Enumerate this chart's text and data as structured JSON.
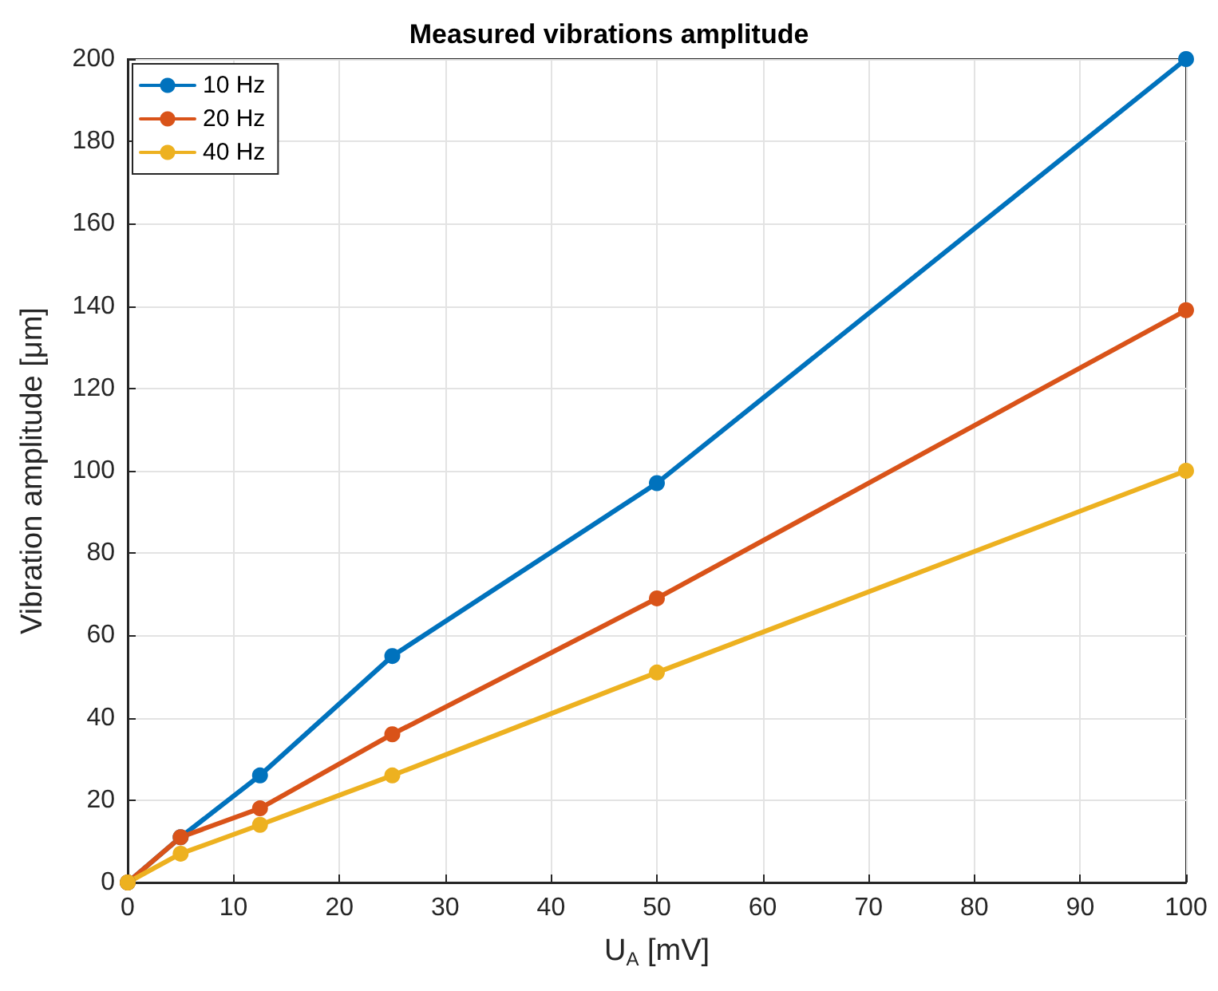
{
  "chart_data": {
    "type": "line",
    "title": "Measured vibrations amplitude",
    "xlabel": "U$_{A}$ [mV]",
    "ylabel": "Vibration amplitude [μm]",
    "x": [
      0,
      5,
      12.5,
      25,
      50,
      100
    ],
    "series": [
      {
        "name": "10 Hz",
        "color": "#0072bd",
        "values": [
          0,
          11,
          26,
          55,
          97,
          200
        ]
      },
      {
        "name": "20 Hz",
        "color": "#d95319",
        "values": [
          0,
          11,
          18,
          36,
          69,
          139
        ]
      },
      {
        "name": "40 Hz",
        "color": "#edb120",
        "values": [
          0,
          7,
          14,
          26,
          51,
          100
        ]
      }
    ],
    "xlim": [
      0,
      100
    ],
    "xticks": [
      0,
      10,
      20,
      30,
      40,
      50,
      60,
      70,
      80,
      90,
      100
    ],
    "ylim": [
      0,
      200
    ],
    "yticks": [
      0,
      20,
      40,
      60,
      80,
      100,
      120,
      140,
      160,
      180,
      200
    ],
    "grid": true,
    "legend": "top left",
    "marker": "circle",
    "line_style": "solid"
  }
}
